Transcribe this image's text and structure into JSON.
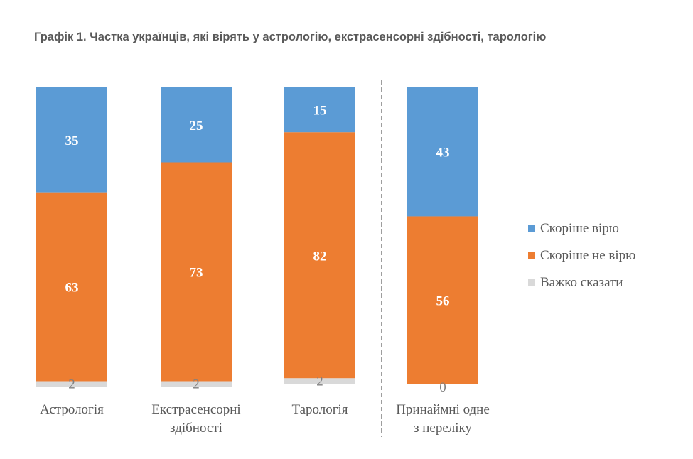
{
  "chart_data": {
    "type": "bar",
    "stacked": true,
    "title": "Графік 1. Частка українців, які вірять у астрологію, екстрасенсорні здібності, тарологію",
    "categories": [
      [
        "Астрологія"
      ],
      [
        "Екстрасенсорні",
        "здібності"
      ],
      [
        "Тарологія"
      ],
      [
        "Принаймні одне",
        "з переліку"
      ]
    ],
    "series": [
      {
        "name": "Скоріше вірю",
        "color": "#5B9BD5",
        "values": [
          35,
          25,
          15,
          43
        ]
      },
      {
        "name": "Скоріше не вірю",
        "color": "#ED7D31",
        "values": [
          63,
          73,
          82,
          56
        ]
      },
      {
        "name": "Важко сказати",
        "color": "#D9D9D9",
        "values": [
          2,
          2,
          2,
          0
        ]
      }
    ],
    "ylim": [
      0,
      100
    ],
    "grid": false,
    "legend": "right",
    "separator_before_category": 3
  }
}
